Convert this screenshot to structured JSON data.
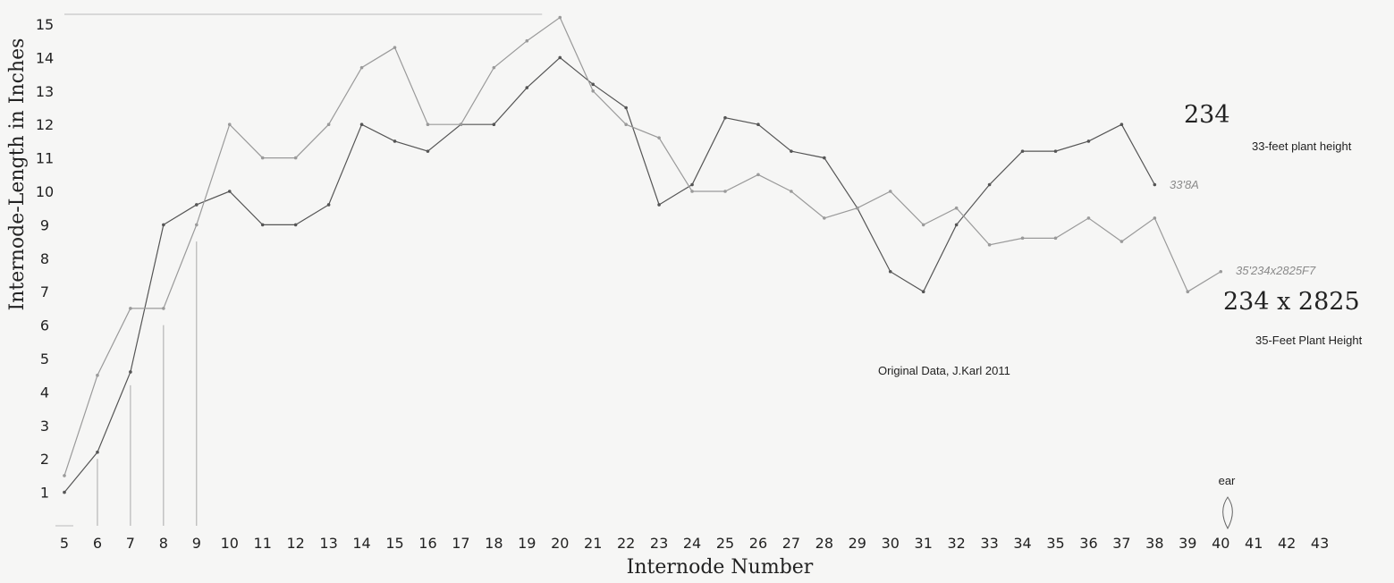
{
  "chart_data": {
    "type": "line",
    "xlabel": "Internode Number",
    "ylabel": "Internode-Length in Inches",
    "x_ticks": [
      "5",
      "6",
      "7",
      "8",
      "9",
      "10",
      "11",
      "12",
      "13",
      "14",
      "15",
      "16",
      "17",
      "18",
      "19",
      "20",
      "21",
      "22",
      "23",
      "24",
      "25",
      "26",
      "27",
      "28",
      "29",
      "30",
      "31",
      "32",
      "33",
      "34",
      "35",
      "36",
      "37",
      "38",
      "39",
      "40",
      "41",
      "42",
      "43"
    ],
    "y_ticks": [
      "1",
      "2",
      "3",
      "4",
      "5",
      "6",
      "7",
      "8",
      "9",
      "10",
      "11",
      "12",
      "13",
      "14",
      "15"
    ],
    "xlim": [
      5,
      43
    ],
    "ylim": [
      0,
      15.2
    ],
    "grid": false,
    "series": [
      {
        "name": "33'8A",
        "color": "#555555",
        "x": [
          5,
          6,
          7,
          8,
          9,
          10,
          11,
          12,
          13,
          14,
          15,
          16,
          17,
          18,
          19,
          20,
          21,
          22,
          23,
          24,
          25,
          26,
          27,
          28,
          29,
          30,
          31,
          32,
          33,
          34,
          35,
          36,
          37,
          38
        ],
        "values": [
          1.0,
          2.2,
          4.6,
          9.0,
          9.6,
          10.0,
          9.0,
          9.0,
          9.6,
          12.0,
          11.5,
          11.2,
          12.0,
          12.0,
          13.1,
          14.0,
          13.2,
          12.5,
          9.6,
          10.2,
          12.2,
          12.0,
          11.2,
          11.0,
          9.5,
          7.6,
          7.0,
          9.0,
          10.2,
          11.2,
          11.2,
          11.5,
          12.0,
          10.2
        ]
      },
      {
        "name": "35'234x2825F7",
        "color": "#9a9a9a",
        "x": [
          5,
          6,
          7,
          8,
          9,
          10,
          11,
          12,
          13,
          14,
          15,
          16,
          17,
          18,
          19,
          20,
          21,
          22,
          23,
          24,
          25,
          26,
          27,
          28,
          29,
          30,
          31,
          32,
          33,
          34,
          35,
          36,
          37,
          38,
          39,
          40
        ],
        "values": [
          1.5,
          4.5,
          6.5,
          6.5,
          9.0,
          12.0,
          11.0,
          11.0,
          12.0,
          13.7,
          14.3,
          12.0,
          12.0,
          13.7,
          14.5,
          15.2,
          13.0,
          12.0,
          11.6,
          10.0,
          10.0,
          10.5,
          10.0,
          9.2,
          9.5,
          10.0,
          9.0,
          9.5,
          8.4,
          8.6,
          8.6,
          9.2,
          8.5,
          9.2,
          7.0,
          7.6
        ]
      }
    ],
    "end_labels": [
      "33'8A",
      "35'234x2825F7"
    ],
    "annotations": {
      "label_234": "234",
      "label_33ft": "33-feet plant height",
      "label_cross": "234 x 2825",
      "label_35ft": "35-Feet Plant Height",
      "source": "Original Data, J.Karl 2011",
      "ear": "ear"
    }
  }
}
